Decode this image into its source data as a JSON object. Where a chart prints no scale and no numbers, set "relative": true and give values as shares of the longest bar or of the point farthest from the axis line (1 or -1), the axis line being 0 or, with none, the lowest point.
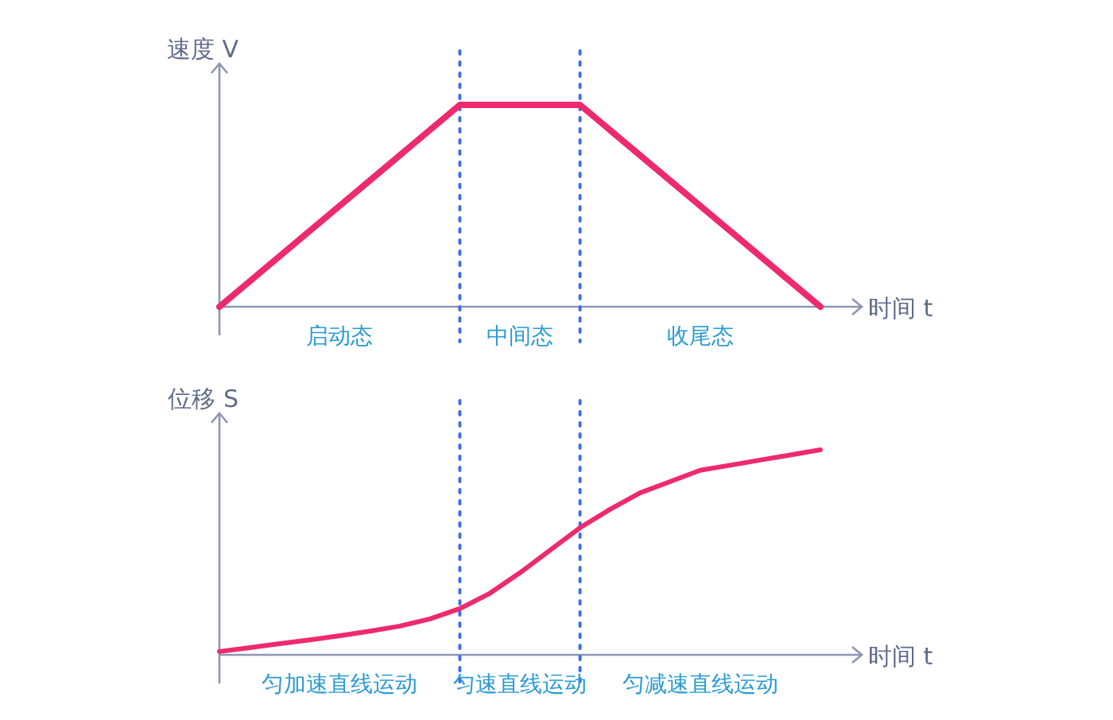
{
  "chart_data": [
    {
      "type": "line",
      "xlabel": "时间 t",
      "ylabel": "速度 V",
      "relative": true,
      "tick_labels": false,
      "grid": false,
      "marker": "none",
      "line_style": "solid",
      "categories": [
        null,
        null,
        null,
        null,
        null,
        null
      ],
      "series": [
        {
          "color": "#ee2a6e",
          "values": [
            0,
            0.5,
            1,
            1,
            0.5,
            0
          ]
        }
      ],
      "annotations": [
        "启动态",
        "中间态",
        "收尾态"
      ]
    },
    {
      "type": "line",
      "xlabel": "时间 t",
      "ylabel": "位移 S",
      "relative": true,
      "tick_labels": false,
      "grid": false,
      "marker": "none",
      "line_style": "solid",
      "categories": [
        null,
        null,
        null,
        null,
        null,
        null,
        null,
        null,
        null,
        null,
        null,
        null,
        null,
        null,
        null,
        null,
        null,
        null,
        null,
        null,
        null
      ],
      "series": [
        {
          "color": "#ee2a6e",
          "values": [
            0.016,
            0.035,
            0.054,
            0.073,
            0.093,
            0.115,
            0.14,
            0.175,
            0.225,
            0.3,
            0.4,
            0.51,
            0.62,
            0.71,
            0.79,
            0.845,
            0.9,
            0.925,
            0.95,
            0.975,
            1
          ]
        }
      ],
      "annotations": [
        "匀加速直线运动",
        "匀速直线运动",
        "匀减速直线运动"
      ]
    }
  ]
}
